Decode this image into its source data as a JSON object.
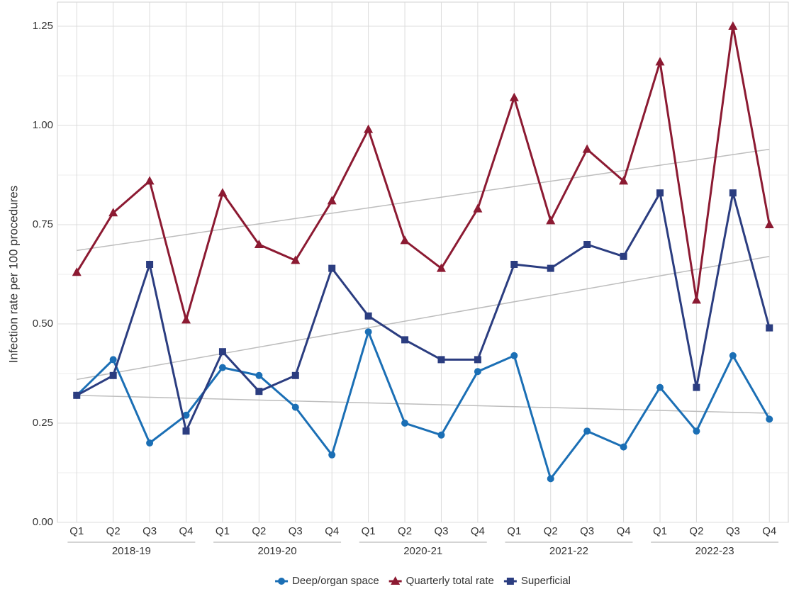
{
  "chart_data": {
    "type": "line",
    "y_label": "Infection rate per 100 procedures",
    "categories": [
      "Q1",
      "Q2",
      "Q3",
      "Q4",
      "Q1",
      "Q2",
      "Q3",
      "Q4",
      "Q1",
      "Q2",
      "Q3",
      "Q4",
      "Q1",
      "Q2",
      "Q3",
      "Q4",
      "Q1",
      "Q2",
      "Q3",
      "Q4"
    ],
    "category_groups": [
      "2018-19",
      "2019-20",
      "2020-21",
      "2021-22",
      "2022-23"
    ],
    "ylim": [
      0,
      1.25
    ],
    "yticks": [
      {
        "value": 0,
        "label": "0.00"
      },
      {
        "value": 0.25,
        "label": "0.25"
      },
      {
        "value": 0.5,
        "label": "0.50"
      },
      {
        "value": 0.75,
        "label": "0.75"
      },
      {
        "value": 1,
        "label": "1.00"
      },
      {
        "value": 1.25,
        "label": "1.25"
      }
    ],
    "grid": true,
    "legend": "bottom",
    "trend_color": "#bdbdbd",
    "series": [
      {
        "name": "Deep/organ space",
        "color": "#1b6fb5",
        "marker": "circle",
        "values": [
          0.32,
          0.41,
          0.2,
          0.27,
          0.39,
          0.37,
          0.29,
          0.17,
          0.48,
          0.25,
          0.22,
          0.38,
          0.42,
          0.11,
          0.23,
          0.19,
          0.34,
          0.23,
          0.42,
          0.26
        ],
        "trend": [
          0.32,
          0.275
        ]
      },
      {
        "name": "Quarterly total rate",
        "color": "#8c1a32",
        "marker": "triangle",
        "values": [
          0.63,
          0.78,
          0.86,
          0.51,
          0.83,
          0.7,
          0.66,
          0.81,
          0.99,
          0.71,
          0.64,
          0.79,
          1.07,
          0.76,
          0.94,
          0.86,
          1.16,
          0.56,
          1.25,
          0.75
        ],
        "trend": [
          0.685,
          0.94
        ]
      },
      {
        "name": "Superficial",
        "color": "#2b3d80",
        "marker": "square",
        "values": [
          0.32,
          0.37,
          0.65,
          0.23,
          0.43,
          0.33,
          0.37,
          0.64,
          0.52,
          0.46,
          0.41,
          0.41,
          0.65,
          0.64,
          0.7,
          0.67,
          0.83,
          0.34,
          0.83,
          0.49
        ],
        "trend": [
          0.36,
          0.67
        ]
      }
    ]
  }
}
